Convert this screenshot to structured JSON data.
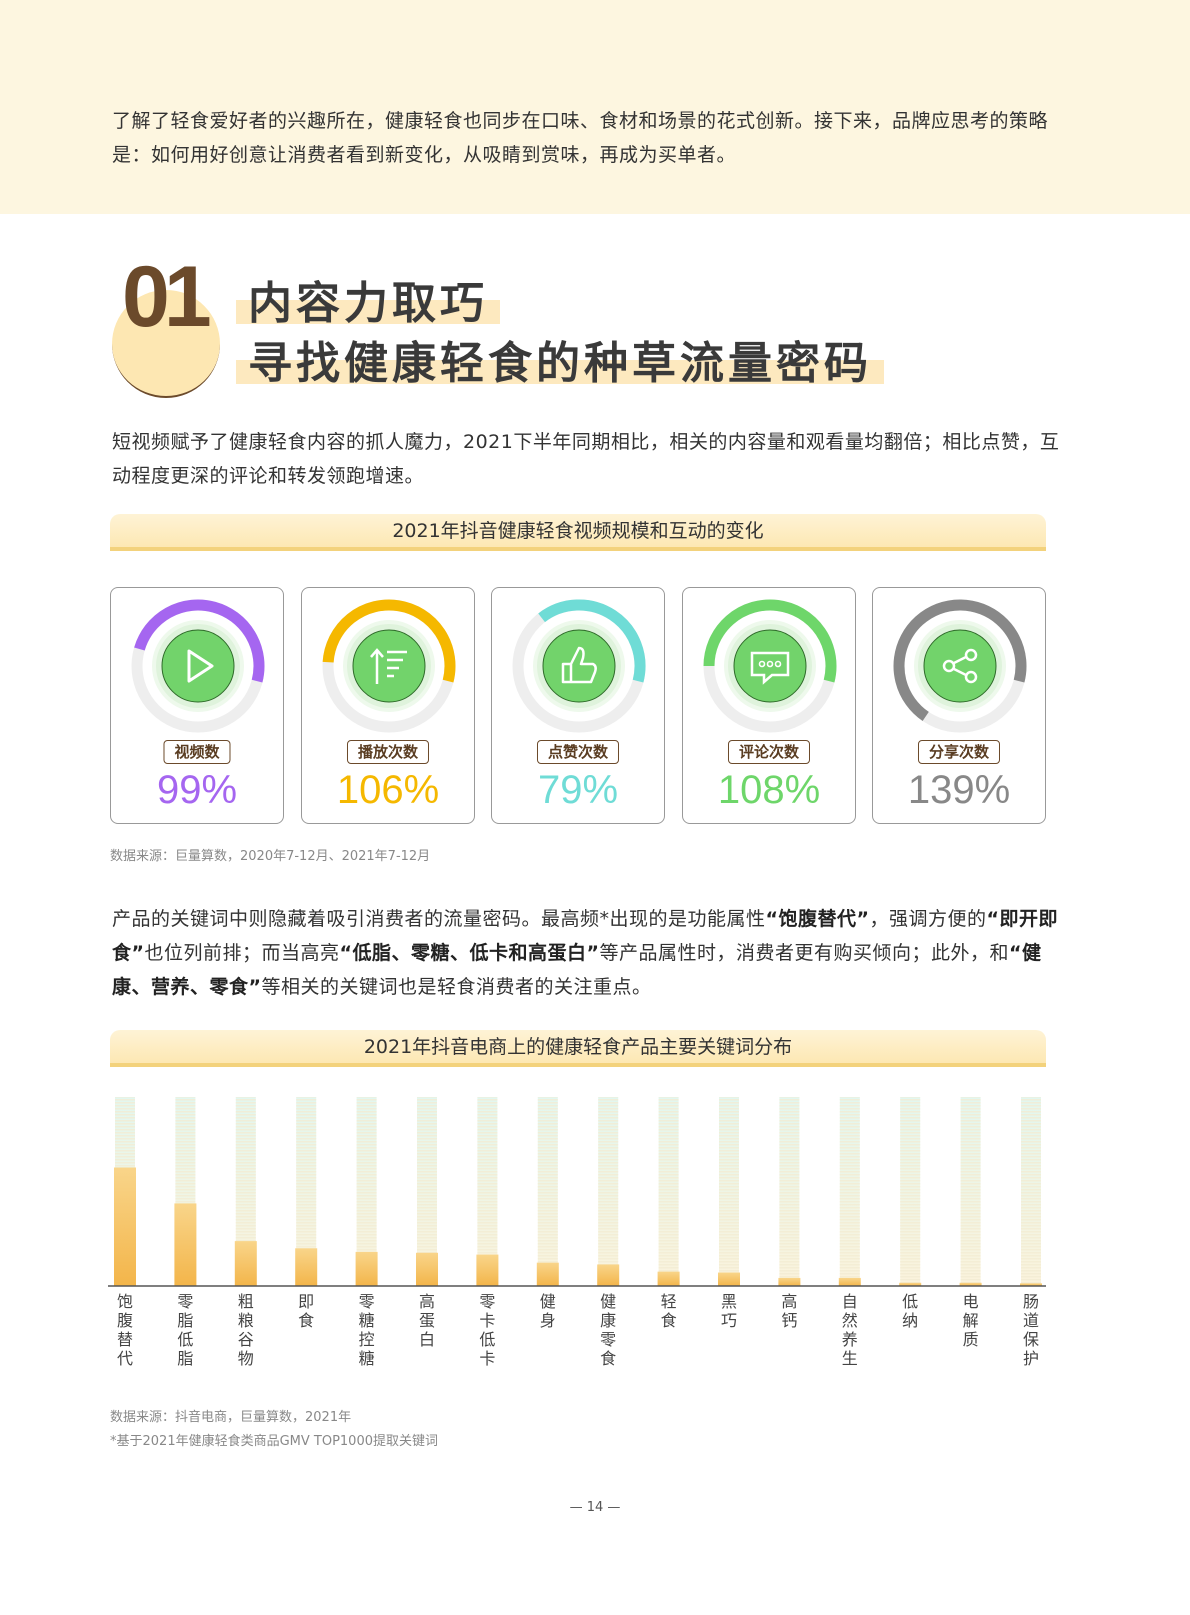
{
  "intro": "了解了轻食爱好者的兴趣所在，健康轻食也同步在口味、食材和场景的花式创新。接下来，品牌应思考的策略是：如何用好创意让消费者看到新变化，从吸睛到赏味，再成为买单者。",
  "section": {
    "number": "01",
    "title1": "内容力取巧",
    "title2": "寻找健康轻食的种草流量密码"
  },
  "para1": "短视频赋予了健康轻食内容的抓人魔力，2021下半年同期相比，相关的内容量和观看量均翻倍；相比点赞，互动程度更深的评论和转发领跑增速。",
  "chart1": {
    "title": "2021年抖音健康轻食视频规模和互动的变化",
    "source": "数据来源：巨量算数，2020年7-12月、2021年7-12月",
    "cards": [
      {
        "label": "视频数",
        "value": "99%",
        "pct": 99,
        "color": "#a566f0",
        "icon": "play-icon"
      },
      {
        "label": "播放次数",
        "value": "106%",
        "pct": 106,
        "color": "#f5b800",
        "icon": "sort-ascending-icon"
      },
      {
        "label": "点赞次数",
        "value": "79%",
        "pct": 79,
        "color": "#6fdcd6",
        "icon": "thumbs-up-icon"
      },
      {
        "label": "评论次数",
        "value": "108%",
        "pct": 108,
        "color": "#6ed66a",
        "icon": "comment-icon"
      },
      {
        "label": "分享次数",
        "value": "139%",
        "pct": 139,
        "color": "#888888",
        "icon": "share-icon"
      }
    ]
  },
  "para2": {
    "s1": "产品的关键词中则隐藏着吸引消费者的流量密码。最高频*出现的是功能属性",
    "b1": "“饱腹替代”",
    "s2": "，强调方便的",
    "b2": "“即开即食”",
    "s3": "也位列前排；而当高亮",
    "b3": "“低脂、零糖、低卡和高蛋白”",
    "s4": "等产品属性时，消费者更有购买倾向；此外，和",
    "b4": "“健康、营养、零食”",
    "s5": "等相关的关键词也是轻食消费者的关注重点。"
  },
  "chart_data": {
    "type": "bar",
    "title": "2021年抖音电商上的健康轻食产品主要关键词分布",
    "xlabel": "",
    "ylabel": "",
    "ylim": [
      0,
      100
    ],
    "categories": [
      "饱腹替代",
      "零脂低脂",
      "粗粮谷物",
      "即食",
      "零糖控糖",
      "高蛋白",
      "零卡低卡",
      "健身",
      "健康零食",
      "轻食",
      "黑巧",
      "高钙",
      "自然养生",
      "低纳",
      "电解质",
      "肠道保护"
    ],
    "values": [
      66,
      46,
      25,
      21,
      19,
      18.5,
      17.5,
      13,
      12,
      8,
      7.5,
      4.5,
      4.5,
      1.8,
      1.8,
      1.5
    ]
  },
  "chart2_source": "数据来源：抖音电商，巨量算数，2021年",
  "chart2_note": "*基于2021年健康轻食类商品GMV TOP1000提取关键词",
  "page_number": "— 14 —"
}
